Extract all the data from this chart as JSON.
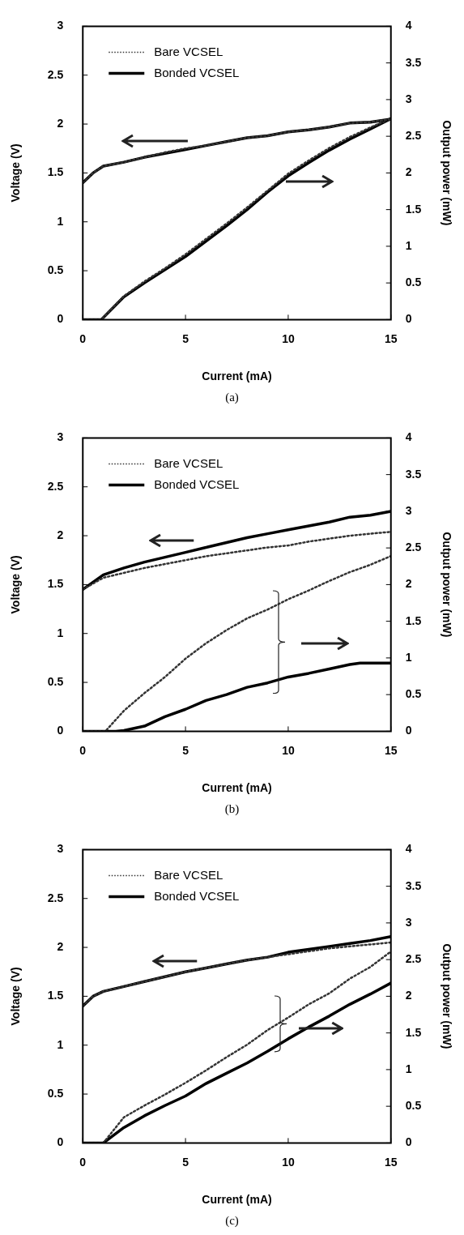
{
  "chart_data": [
    {
      "type": "line",
      "title": "(a)",
      "xlabel": "Current (mA)",
      "ylabel": "Voltage (V)",
      "y2label": "Output power (mW)",
      "xlim": [
        0,
        15
      ],
      "xticks": [
        0,
        5,
        10,
        15
      ],
      "ylim": [
        0,
        3
      ],
      "yticks": [
        0,
        0.5,
        1,
        1.5,
        2,
        2.5,
        3
      ],
      "y2lim": [
        0,
        4
      ],
      "y2ticks": [
        0,
        0.5,
        1,
        1.5,
        2,
        2.5,
        3,
        3.5,
        4
      ],
      "grid": false,
      "legend": "top left",
      "marker": "none",
      "series": [
        {
          "name": "Bare VCSEL",
          "color": "#333333",
          "line_style": "dotted",
          "x": [
            0,
            0.5,
            1,
            2,
            3,
            4,
            5,
            6,
            7,
            8,
            9,
            10,
            11,
            12,
            13,
            14,
            15
          ],
          "values": [
            1.4,
            1.5,
            1.57,
            1.61,
            1.66,
            1.71,
            1.75,
            1.78,
            1.82,
            1.86,
            1.88,
            1.92,
            1.94,
            1.97,
            2.01,
            2.02,
            2.05
          ]
        },
        {
          "name": "Bonded VCSEL",
          "color": "#000000",
          "line_style": "solid",
          "x": [
            0,
            0.5,
            1,
            2,
            3,
            4,
            5,
            6,
            7,
            8,
            9,
            10,
            11,
            12,
            13,
            14,
            15
          ],
          "values": [
            1.4,
            1.5,
            1.57,
            1.61,
            1.66,
            1.7,
            1.74,
            1.78,
            1.82,
            1.86,
            1.88,
            1.92,
            1.94,
            1.97,
            2.01,
            2.02,
            2.05
          ]
        },
        {
          "color": "#333333",
          "line_style": "dotted",
          "axis": "y2",
          "x": [
            0,
            0.9,
            2,
            3,
            4,
            5,
            6,
            7,
            8,
            9,
            10,
            11,
            12,
            13,
            14,
            15
          ],
          "values": [
            0,
            0,
            0.32,
            0.52,
            0.7,
            0.89,
            1.1,
            1.31,
            1.53,
            1.76,
            1.99,
            2.17,
            2.34,
            2.49,
            2.62,
            2.74
          ]
        },
        {
          "color": "#000000",
          "line_style": "solid",
          "axis": "y2",
          "x": [
            0,
            0.9,
            2,
            3,
            4,
            5,
            6,
            7,
            8,
            9,
            10,
            11,
            12,
            13,
            14,
            15
          ],
          "values": [
            0,
            0,
            0.31,
            0.5,
            0.68,
            0.86,
            1.07,
            1.28,
            1.5,
            1.74,
            1.96,
            2.14,
            2.31,
            2.46,
            2.6,
            2.74
          ]
        }
      ]
    },
    {
      "type": "line",
      "title": "(b)",
      "xlabel": "Current (mA)",
      "ylabel": "Voltage (V)",
      "y2label": "Output power (mW)",
      "xlim": [
        0,
        15
      ],
      "xticks": [
        0,
        5,
        10,
        15
      ],
      "ylim": [
        0,
        3
      ],
      "yticks": [
        0,
        0.5,
        1,
        1.5,
        2,
        2.5,
        3
      ],
      "y2lim": [
        0,
        4
      ],
      "y2ticks": [
        0,
        0.5,
        1,
        1.5,
        2,
        2.5,
        3,
        3.5,
        4
      ],
      "grid": false,
      "legend": "top left",
      "marker": "none",
      "series": [
        {
          "name": "Bare VCSEL",
          "color": "#333333",
          "line_style": "dotted",
          "x": [
            0,
            1,
            2,
            3,
            4,
            5,
            6,
            7,
            8,
            9,
            10,
            11,
            12,
            13,
            14,
            15
          ],
          "values": [
            1.45,
            1.57,
            1.62,
            1.67,
            1.71,
            1.75,
            1.79,
            1.82,
            1.85,
            1.88,
            1.9,
            1.94,
            1.97,
            2.0,
            2.02,
            2.04
          ]
        },
        {
          "name": "Bonded VCSEL",
          "color": "#000000",
          "line_style": "solid",
          "x": [
            0,
            1,
            2,
            3,
            4,
            5,
            6,
            7,
            8,
            9,
            10,
            11,
            12,
            13,
            14,
            15
          ],
          "values": [
            1.45,
            1.6,
            1.67,
            1.73,
            1.78,
            1.83,
            1.88,
            1.93,
            1.98,
            2.02,
            2.06,
            2.1,
            2.14,
            2.19,
            2.21,
            2.25
          ]
        },
        {
          "color": "#333333",
          "line_style": "dotted",
          "axis": "y2",
          "x": [
            0,
            1.1,
            2,
            3,
            4,
            5,
            6,
            7,
            8,
            9,
            10,
            11,
            12,
            13,
            14,
            15
          ],
          "values": [
            0,
            0,
            0.28,
            0.52,
            0.74,
            0.99,
            1.2,
            1.38,
            1.54,
            1.66,
            1.8,
            1.92,
            2.05,
            2.17,
            2.27,
            2.39
          ]
        },
        {
          "color": "#000000",
          "line_style": "solid",
          "axis": "y2",
          "x": [
            0,
            1.6,
            2,
            3,
            4,
            5,
            6,
            7,
            8,
            9,
            10,
            11,
            12,
            13,
            13.5,
            14,
            15
          ],
          "values": [
            0,
            0,
            0.01,
            0.07,
            0.2,
            0.3,
            0.42,
            0.5,
            0.6,
            0.66,
            0.74,
            0.79,
            0.85,
            0.91,
            0.93,
            0.93,
            0.93
          ]
        }
      ]
    },
    {
      "type": "line",
      "title": "(c)",
      "xlabel": "Current (mA)",
      "ylabel": "Voltage (V)",
      "y2label": "Output power (mW)",
      "xlim": [
        0,
        15
      ],
      "xticks": [
        0,
        5,
        10,
        15
      ],
      "ylim": [
        0,
        3
      ],
      "yticks": [
        0,
        0.5,
        1,
        1.5,
        2,
        2.5,
        3
      ],
      "y2lim": [
        0,
        4
      ],
      "y2ticks": [
        0,
        0.5,
        1,
        1.5,
        2,
        2.5,
        3,
        3.5,
        4
      ],
      "grid": false,
      "legend": "top left",
      "marker": "none",
      "series": [
        {
          "name": "Bare VCSEL",
          "color": "#333333",
          "line_style": "dotted",
          "x": [
            0,
            0.5,
            1,
            2,
            3,
            4,
            5,
            6,
            7,
            8,
            9,
            10,
            11,
            12,
            13,
            14,
            15
          ],
          "values": [
            1.4,
            1.5,
            1.55,
            1.6,
            1.65,
            1.7,
            1.75,
            1.79,
            1.83,
            1.87,
            1.9,
            1.93,
            1.96,
            1.99,
            2.01,
            2.03,
            2.05
          ]
        },
        {
          "name": "Bonded VCSEL",
          "color": "#000000",
          "line_style": "solid",
          "x": [
            0,
            0.5,
            1,
            2,
            3,
            4,
            5,
            6,
            7,
            8,
            9,
            10,
            11,
            12,
            13,
            14,
            15
          ],
          "values": [
            1.4,
            1.5,
            1.55,
            1.6,
            1.65,
            1.7,
            1.75,
            1.79,
            1.83,
            1.87,
            1.9,
            1.95,
            1.98,
            2.01,
            2.04,
            2.07,
            2.11
          ]
        },
        {
          "color": "#333333",
          "line_style": "dotted",
          "axis": "y2",
          "x": [
            0,
            1,
            2,
            3,
            4,
            5,
            6,
            7,
            8,
            9,
            10,
            11,
            12,
            13,
            14,
            15
          ],
          "values": [
            0,
            0,
            0.35,
            0.51,
            0.66,
            0.82,
            0.99,
            1.17,
            1.34,
            1.54,
            1.71,
            1.89,
            2.04,
            2.24,
            2.4,
            2.61
          ]
        },
        {
          "color": "#000000",
          "line_style": "solid",
          "axis": "y2",
          "x": [
            0,
            1,
            2,
            3,
            4,
            5,
            6,
            7,
            8,
            9,
            10,
            11,
            12,
            13,
            14,
            15
          ],
          "values": [
            0,
            0,
            0.21,
            0.37,
            0.51,
            0.64,
            0.81,
            0.95,
            1.09,
            1.25,
            1.42,
            1.58,
            1.73,
            1.89,
            2.03,
            2.18
          ]
        }
      ]
    }
  ]
}
